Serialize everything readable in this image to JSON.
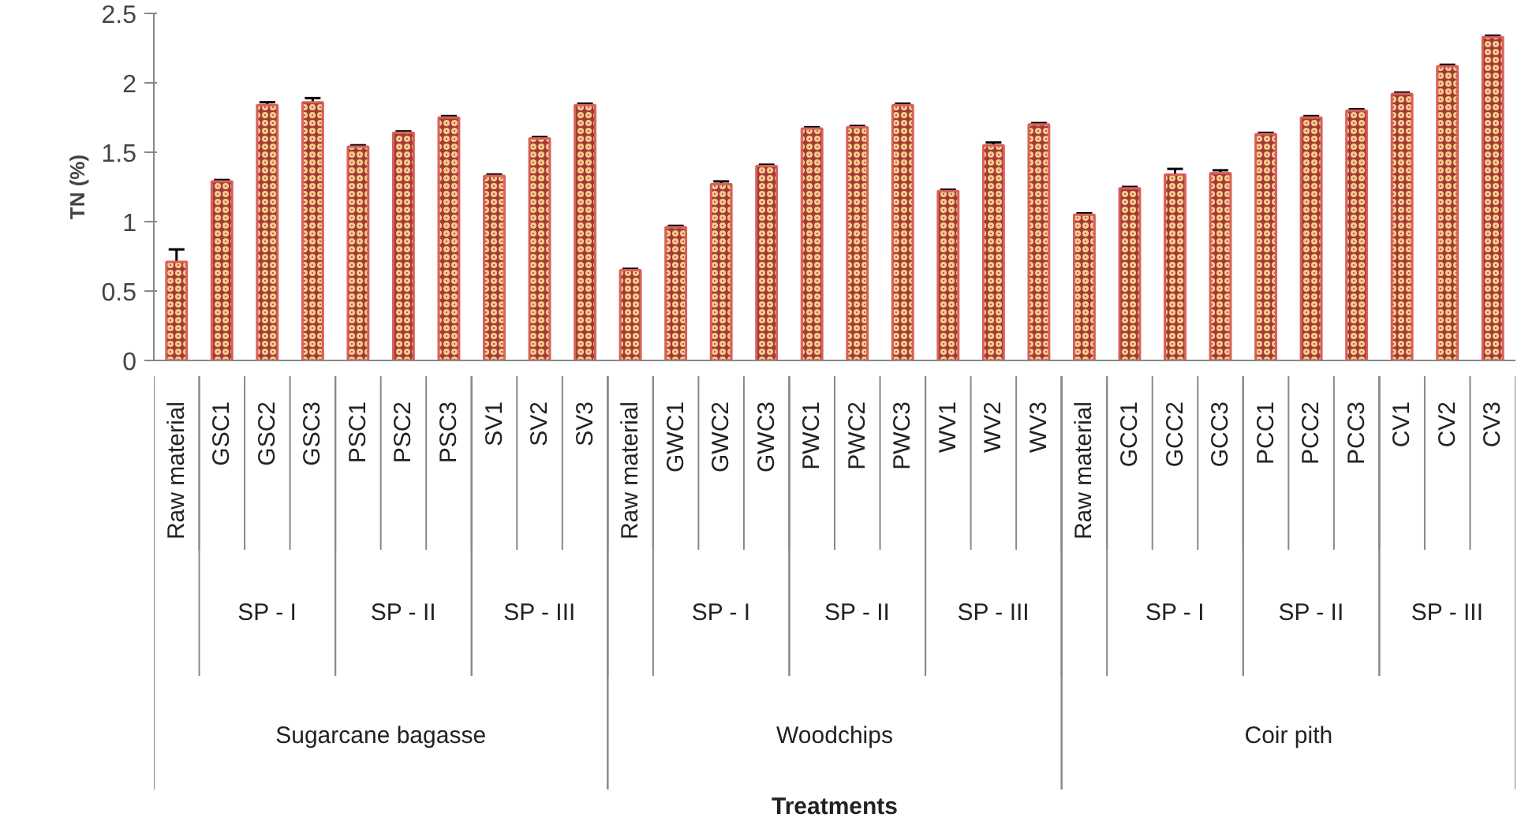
{
  "chart_data": {
    "type": "bar",
    "ylabel": "TN (%)",
    "categories": [
      "Raw material",
      "GSC1",
      "GSC2",
      "GSC3",
      "PSC1",
      "PSC2",
      "PSC3",
      "SV1",
      "SV2",
      "SV3",
      "Raw material",
      "GWC1",
      "GWC2",
      "GWC3",
      "PWC1",
      "PWC2",
      "PWC3",
      "WV1",
      "WV2",
      "WV3",
      "Raw material",
      "GCC1",
      "GCC2",
      "GCC3",
      "PCC1",
      "PCC2",
      "PCC3",
      "CV1",
      "CV2",
      "CV3"
    ],
    "values": [
      0.71,
      1.29,
      1.84,
      1.86,
      1.54,
      1.64,
      1.75,
      1.33,
      1.6,
      1.84,
      0.65,
      0.96,
      1.27,
      1.4,
      1.67,
      1.68,
      1.84,
      1.22,
      1.55,
      1.7,
      1.05,
      1.24,
      1.34,
      1.35,
      1.63,
      1.75,
      1.8,
      1.92,
      2.12,
      2.33
    ],
    "errors": [
      0.09,
      0.01,
      0.02,
      0.03,
      0.01,
      0.01,
      0.01,
      0.01,
      0.01,
      0.01,
      0.01,
      0.01,
      0.02,
      0.01,
      0.01,
      0.01,
      0.01,
      0.01,
      0.02,
      0.01,
      0.01,
      0.01,
      0.04,
      0.02,
      0.01,
      0.01,
      0.01,
      0.01,
      0.01,
      0.01
    ],
    "color": "#a33a36",
    "ylim": [
      0,
      2.5
    ],
    "yticks": [
      0,
      0.5,
      1,
      1.5,
      2,
      2.5
    ],
    "grid": false,
    "annotations": [
      "SP - I",
      "SP - II",
      "SP - III",
      "SP - I",
      "SP - II",
      "SP - III",
      "SP - I",
      "SP - II",
      "SP - III",
      "Sugarcane bagasse",
      "Woodchips",
      "Coir pith",
      "Treatments"
    ]
  }
}
